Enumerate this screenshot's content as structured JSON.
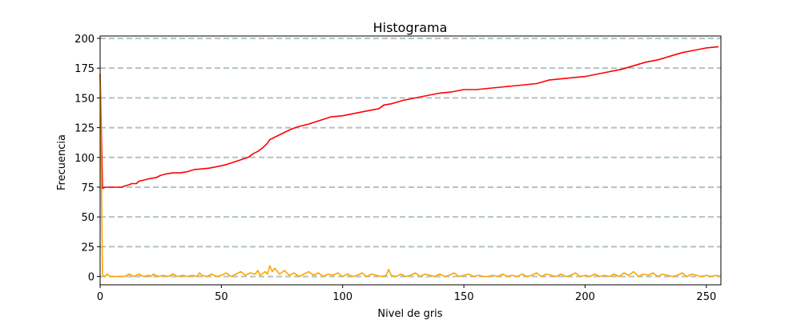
{
  "chart_data": {
    "type": "line",
    "title": "Histograma",
    "xlabel": "Nivel de gris",
    "ylabel": "Frecuencia",
    "xlim": [
      0,
      256
    ],
    "ylim": [
      -7,
      202
    ],
    "xticks": [
      0,
      50,
      100,
      150,
      200,
      250
    ],
    "yticks": [
      0,
      25,
      50,
      75,
      100,
      125,
      150,
      175,
      200
    ],
    "grid": "horizontal dashed",
    "colors": {
      "grid": "#b0c4c4",
      "cumulative": "#ff0000",
      "histogram": "#ffa500"
    },
    "series": [
      {
        "color": "#ff0000",
        "x": [
          0,
          1,
          2,
          5,
          9,
          10,
          12,
          13,
          15,
          16,
          18,
          20,
          23,
          25,
          27,
          30,
          33,
          36,
          39,
          40,
          45,
          50,
          52,
          55,
          58,
          61,
          63,
          65,
          67,
          69,
          70,
          72,
          74,
          76,
          79,
          82,
          86,
          89,
          92,
          95,
          100,
          105,
          110,
          115,
          117,
          120,
          125,
          130,
          135,
          140,
          145,
          150,
          155,
          160,
          165,
          170,
          175,
          180,
          185,
          190,
          195,
          200,
          205,
          210,
          215,
          220,
          225,
          230,
          235,
          240,
          245,
          250,
          255
        ],
        "y": [
          170,
          74,
          75,
          75,
          75,
          76,
          77,
          78,
          78,
          80,
          81,
          82,
          83,
          85,
          86,
          87,
          87,
          88,
          90,
          90,
          91,
          93,
          94,
          96,
          98,
          100,
          103,
          105,
          108,
          112,
          115,
          117,
          119,
          121,
          124,
          126,
          128,
          130,
          132,
          134,
          135,
          137,
          139,
          141,
          144,
          145,
          148,
          150,
          152,
          154,
          155,
          157,
          157,
          158,
          159,
          160,
          161,
          162,
          165,
          166,
          167,
          168,
          170,
          172,
          174,
          177,
          180,
          182,
          185,
          188,
          190,
          192,
          193
        ]
      },
      {
        "color": "#ffa500",
        "x": [
          0,
          1,
          2,
          3,
          4,
          5,
          8,
          10,
          12,
          14,
          15,
          16,
          18,
          20,
          21,
          22,
          24,
          26,
          28,
          30,
          32,
          34,
          36,
          38,
          40,
          41,
          42,
          44,
          46,
          48,
          50,
          52,
          54,
          56,
          58,
          60,
          62,
          64,
          65,
          66,
          68,
          69,
          70,
          71,
          72,
          74,
          76,
          78,
          80,
          82,
          84,
          86,
          88,
          90,
          92,
          94,
          96,
          98,
          100,
          102,
          104,
          106,
          108,
          110,
          112,
          114,
          116,
          118,
          119,
          120,
          122,
          124,
          126,
          128,
          130,
          132,
          134,
          136,
          138,
          140,
          142,
          144,
          146,
          148,
          150,
          152,
          154,
          156,
          158,
          160,
          162,
          164,
          166,
          168,
          170,
          172,
          174,
          176,
          178,
          180,
          182,
          184,
          186,
          188,
          190,
          192,
          194,
          196,
          198,
          200,
          202,
          204,
          206,
          208,
          210,
          212,
          214,
          216,
          218,
          220,
          222,
          224,
          226,
          228,
          230,
          232,
          234,
          236,
          238,
          240,
          242,
          244,
          246,
          248,
          250,
          252,
          254,
          256
        ],
        "y": [
          170,
          1,
          0,
          2,
          0,
          0,
          0,
          0,
          2,
          0,
          1,
          2,
          0,
          1,
          0,
          2,
          0,
          1,
          0,
          2,
          0,
          1,
          0,
          1,
          0,
          3,
          1,
          0,
          2,
          0,
          1,
          3,
          0,
          2,
          4,
          1,
          3,
          2,
          5,
          1,
          4,
          2,
          9,
          4,
          7,
          2,
          5,
          1,
          3,
          0,
          2,
          4,
          1,
          3,
          0,
          2,
          1,
          3,
          0,
          2,
          0,
          1,
          3,
          0,
          2,
          1,
          0,
          1,
          6,
          1,
          0,
          2,
          0,
          1,
          3,
          0,
          2,
          1,
          0,
          2,
          0,
          1,
          3,
          0,
          1,
          2,
          0,
          1,
          0,
          0,
          1,
          0,
          2,
          0,
          1,
          0,
          2,
          0,
          1,
          3,
          0,
          2,
          1,
          0,
          2,
          0,
          1,
          3,
          0,
          1,
          0,
          2,
          0,
          1,
          0,
          2,
          0,
          3,
          1,
          4,
          0,
          2,
          1,
          3,
          0,
          2,
          1,
          0,
          1,
          3,
          0,
          2,
          1,
          0,
          1,
          0,
          1,
          0
        ]
      }
    ]
  }
}
